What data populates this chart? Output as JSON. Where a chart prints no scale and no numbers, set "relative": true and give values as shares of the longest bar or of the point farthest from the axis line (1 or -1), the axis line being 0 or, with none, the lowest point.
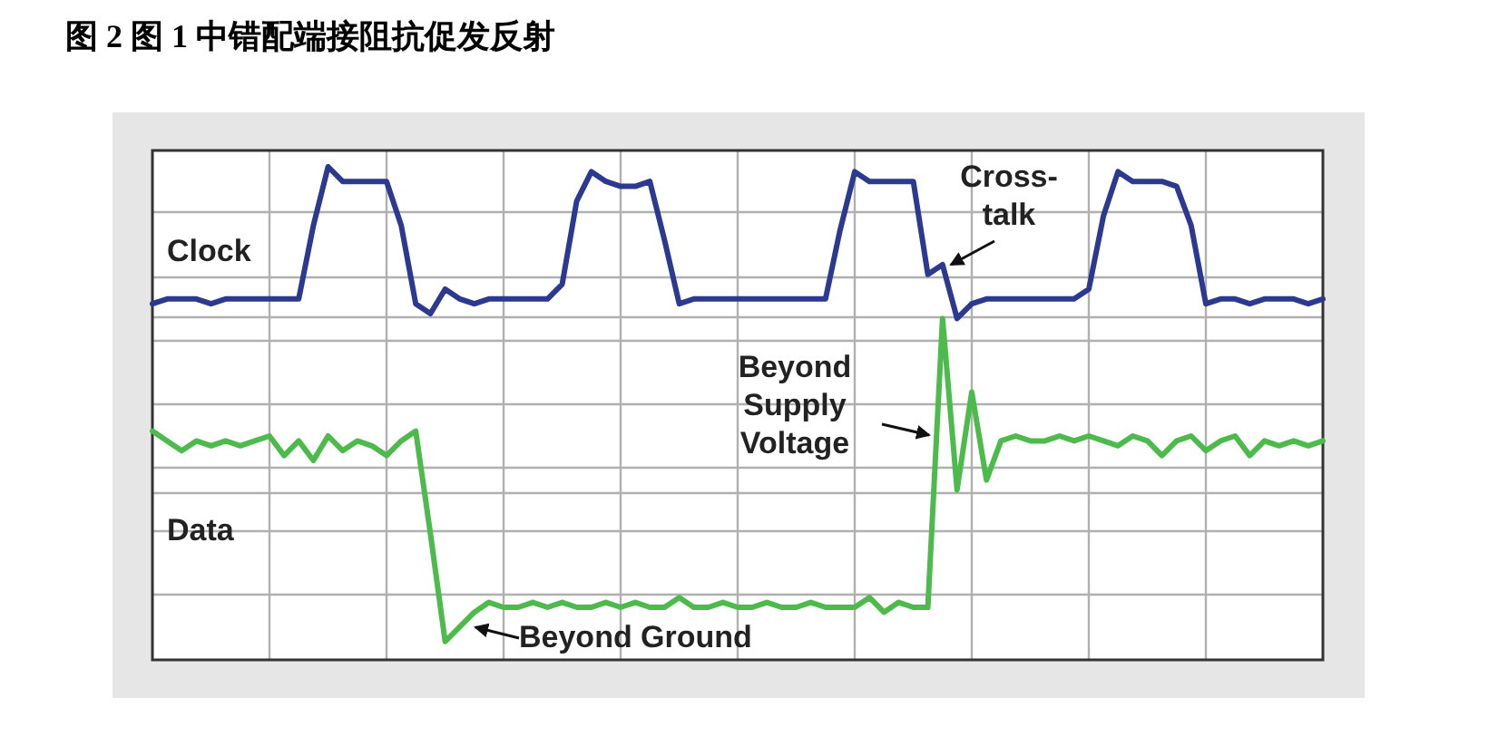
{
  "chart_data": {
    "type": "line",
    "title": "图 2 图 1 中错配端接阻抗促发反射",
    "relative": true,
    "grid": true,
    "legend": false,
    "categories": [
      null,
      null,
      null,
      null,
      null,
      null,
      null,
      null,
      null,
      null,
      null,
      null,
      null,
      null,
      null,
      null,
      null,
      null,
      null,
      null,
      null,
      null,
      null,
      null,
      null,
      null,
      null,
      null,
      null,
      null,
      null,
      null,
      null,
      null,
      null,
      null,
      null,
      null,
      null,
      null,
      null,
      null,
      null,
      null,
      null,
      null,
      null,
      null,
      null,
      null,
      null,
      null,
      null,
      null,
      null,
      null,
      null,
      null,
      null,
      null,
      null,
      null,
      null,
      null,
      null,
      null,
      null,
      null,
      null,
      null,
      null,
      null,
      null,
      null,
      null,
      null,
      null,
      null,
      null,
      null,
      null
    ],
    "series": [
      {
        "name": "Clock",
        "color": "#2b3990",
        "values": [
          0.72,
          0.73,
          0.73,
          0.73,
          0.72,
          0.73,
          0.73,
          0.73,
          0.73,
          0.73,
          0.73,
          0.88,
          1.0,
          0.97,
          0.97,
          0.97,
          0.97,
          0.88,
          0.72,
          0.7,
          0.75,
          0.73,
          0.72,
          0.73,
          0.73,
          0.73,
          0.73,
          0.73,
          0.76,
          0.93,
          0.99,
          0.97,
          0.96,
          0.96,
          0.97,
          0.85,
          0.72,
          0.73,
          0.73,
          0.73,
          0.73,
          0.73,
          0.73,
          0.73,
          0.73,
          0.73,
          0.73,
          0.87,
          0.99,
          0.97,
          0.97,
          0.97,
          0.97,
          0.78,
          0.8,
          0.69,
          0.72,
          0.73,
          0.73,
          0.73,
          0.73,
          0.73,
          0.73,
          0.73,
          0.75,
          0.9,
          0.99,
          0.97,
          0.97,
          0.97,
          0.96,
          0.88,
          0.72,
          0.73,
          0.73,
          0.72,
          0.73,
          0.73,
          0.73,
          0.72,
          0.73
        ]
      },
      {
        "name": "Data",
        "color": "#4cbb4c",
        "values": [
          0.46,
          0.44,
          0.42,
          0.44,
          0.43,
          0.44,
          0.43,
          0.44,
          0.45,
          0.41,
          0.44,
          0.4,
          0.45,
          0.42,
          0.44,
          0.43,
          0.41,
          0.44,
          0.46,
          0.25,
          0.03,
          0.06,
          0.09,
          0.11,
          0.1,
          0.1,
          0.11,
          0.1,
          0.11,
          0.1,
          0.1,
          0.11,
          0.1,
          0.11,
          0.1,
          0.1,
          0.12,
          0.1,
          0.1,
          0.11,
          0.1,
          0.1,
          0.11,
          0.1,
          0.1,
          0.11,
          0.1,
          0.1,
          0.1,
          0.12,
          0.09,
          0.11,
          0.1,
          0.1,
          0.69,
          0.34,
          0.54,
          0.36,
          0.44,
          0.45,
          0.44,
          0.44,
          0.45,
          0.44,
          0.45,
          0.44,
          0.43,
          0.45,
          0.44,
          0.41,
          0.44,
          0.45,
          0.42,
          0.44,
          0.45,
          0.41,
          0.44,
          0.43,
          0.44,
          0.43,
          0.44
        ]
      }
    ],
    "annotations": [
      "Cross-\ntalk",
      "Beyond\nSupply\nVoltage",
      "Beyond Ground"
    ]
  }
}
